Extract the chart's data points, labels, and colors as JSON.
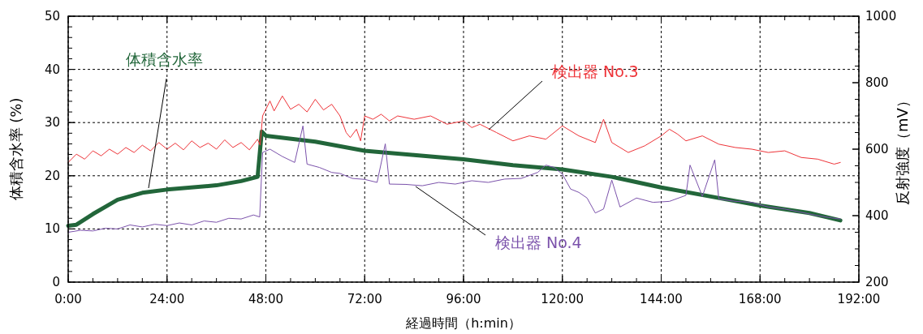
{
  "chart_data": {
    "type": "line",
    "xlabel": "経過時間（h:min）",
    "ylabel": "体積含水率 (%)",
    "y2label": "反射強度（mV）",
    "xlim": [
      0,
      192
    ],
    "xticks": [
      {
        "value": 0,
        "label": "0:00"
      },
      {
        "value": 24,
        "label": "24:00"
      },
      {
        "value": 48,
        "label": "48:00"
      },
      {
        "value": 72,
        "label": "72:00"
      },
      {
        "value": 96,
        "label": "96:00"
      },
      {
        "value": 120,
        "label": "120:00"
      },
      {
        "value": 144,
        "label": "144:00"
      },
      {
        "value": 168,
        "label": "168:00"
      },
      {
        "value": 192,
        "label": "192:00"
      }
    ],
    "ylim": [
      0,
      50
    ],
    "yticks": [
      0,
      10,
      20,
      30,
      40,
      50
    ],
    "y2lim": [
      200,
      1000
    ],
    "y2ticks": [
      200,
      400,
      600,
      800,
      1000
    ],
    "grid": true,
    "series": [
      {
        "name": "検出器 No.3",
        "color": "#ee3338",
        "axis": "y2",
        "x": [
          0,
          2,
          4,
          6,
          8,
          10,
          12,
          14,
          16,
          18,
          20,
          22,
          24,
          26,
          28,
          30,
          32,
          34,
          36,
          38,
          40,
          42,
          44,
          46,
          46.6,
          47.2,
          49,
          50,
          52,
          54,
          56,
          58,
          60,
          62,
          64,
          66,
          67.5,
          68.5,
          70,
          71,
          72,
          74,
          76,
          78,
          80,
          84,
          88,
          92,
          96,
          98,
          100,
          104,
          108,
          112,
          116,
          120,
          124,
          128,
          130,
          132,
          136,
          140,
          144,
          146,
          148,
          150,
          154,
          158,
          162,
          166,
          170,
          174,
          178,
          182,
          186,
          187.5
        ],
        "values": [
          560,
          585,
          570,
          595,
          580,
          600,
          585,
          605,
          590,
          612,
          595,
          620,
          600,
          618,
          598,
          625,
          605,
          618,
          600,
          628,
          605,
          620,
          598,
          630,
          612,
          700,
          745,
          715,
          760,
          720,
          735,
          712,
          750,
          718,
          735,
          700,
          650,
          635,
          660,
          625,
          700,
          690,
          705,
          685,
          700,
          690,
          700,
          675,
          685,
          665,
          675,
          650,
          625,
          640,
          630,
          670,
          640,
          620,
          690,
          620,
          590,
          610,
          640,
          660,
          645,
          625,
          640,
          615,
          605,
          600,
          590,
          595,
          575,
          570,
          555,
          560
        ]
      },
      {
        "name": "検出器 No.4",
        "color": "#7b52ab",
        "axis": "y2",
        "x": [
          0,
          3,
          6,
          9,
          12,
          15,
          18,
          21,
          24,
          27,
          30,
          33,
          36,
          39,
          42,
          45,
          46.5,
          47.2,
          49,
          52,
          55,
          57,
          58,
          61,
          64,
          66,
          69,
          72,
          75,
          77,
          78,
          82,
          86,
          90,
          94,
          98,
          102,
          106,
          110,
          114,
          116,
          118,
          120,
          122,
          124,
          126,
          128,
          130,
          132,
          134,
          138,
          142,
          146,
          150,
          151,
          154,
          157,
          158,
          162,
          166,
          170,
          174,
          178,
          182,
          186,
          187.5
        ],
        "values": [
          350,
          356,
          354,
          362,
          360,
          372,
          366,
          374,
          370,
          378,
          372,
          384,
          380,
          392,
          390,
          402,
          396,
          590,
          600,
          578,
          560,
          670,
          555,
          545,
          530,
          527,
          512,
          509,
          500,
          616,
          495,
          494,
          490,
          500,
          495,
          505,
          500,
          510,
          512,
          530,
          552,
          545,
          525,
          480,
          470,
          453,
          408,
          420,
          507,
          426,
          453,
          440,
          443,
          461,
          552,
          458,
          568,
          450,
          443,
          440,
          426,
          420,
          410,
          400,
          392,
          390
        ]
      },
      {
        "name": "体積含水率",
        "color": "#22663a",
        "x": [
          0,
          2,
          6,
          12,
          18,
          24,
          36,
          42,
          46,
          47,
          48,
          60,
          72,
          84,
          96,
          108,
          120,
          132,
          144,
          156,
          168,
          180,
          187.5
        ],
        "values": [
          10.6,
          10.8,
          12.8,
          15.5,
          16.8,
          17.4,
          18.2,
          19,
          19.8,
          28.3,
          27.5,
          26.4,
          24.7,
          23.9,
          23.1,
          22,
          21.2,
          19.8,
          17.8,
          16.1,
          14.4,
          13,
          11.6
        ]
      }
    ]
  }
}
